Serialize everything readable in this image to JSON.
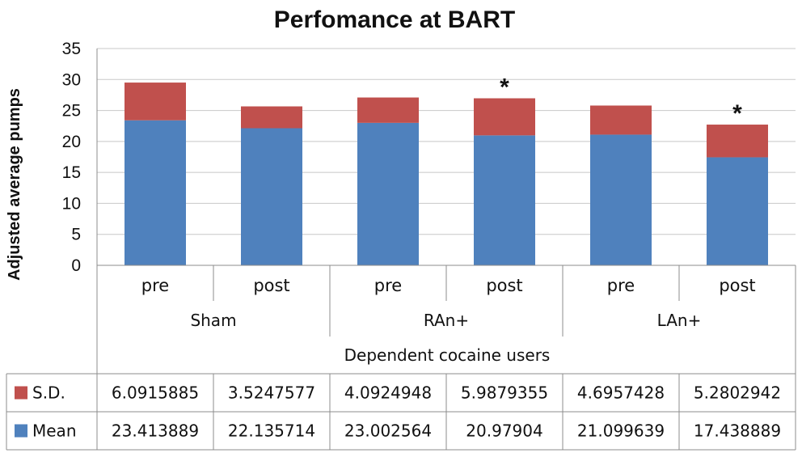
{
  "chart_data": {
    "type": "bar",
    "stacked": true,
    "title": "Perfomance at BART",
    "ylabel": "Adjusted average pumps",
    "xlabel": "Dependent cocaine users",
    "ylim": [
      0,
      35
    ],
    "yticks": [
      0,
      5,
      10,
      15,
      20,
      25,
      30,
      35
    ],
    "grid": true,
    "legend_position": "data-table",
    "groups": [
      {
        "label": "Sham",
        "categories": [
          "pre",
          "post"
        ]
      },
      {
        "label": "RAn+",
        "categories": [
          "pre",
          "post"
        ]
      },
      {
        "label": "LAn+",
        "categories": [
          "pre",
          "post"
        ]
      }
    ],
    "series": [
      {
        "name": "Mean",
        "color": "#4f81bd",
        "values": [
          23.413889,
          22.135714,
          23.002564,
          20.97904,
          21.099639,
          17.438889
        ],
        "labels": [
          "23.413889",
          "22.135714",
          "23.002564",
          "20.97904",
          "21.099639",
          "17.438889"
        ]
      },
      {
        "name": "S.D.",
        "color": "#c0504d",
        "values": [
          6.0915885,
          3.5247577,
          4.0924948,
          5.9879355,
          4.6957428,
          5.2802942
        ],
        "labels": [
          "6.0915885",
          "3.5247577",
          "4.0924948",
          "5.9879355",
          "4.6957428",
          "5.2802942"
        ]
      }
    ],
    "annotations": [
      {
        "text": "*",
        "bar_index": 3
      },
      {
        "text": "*",
        "bar_index": 5
      }
    ]
  }
}
